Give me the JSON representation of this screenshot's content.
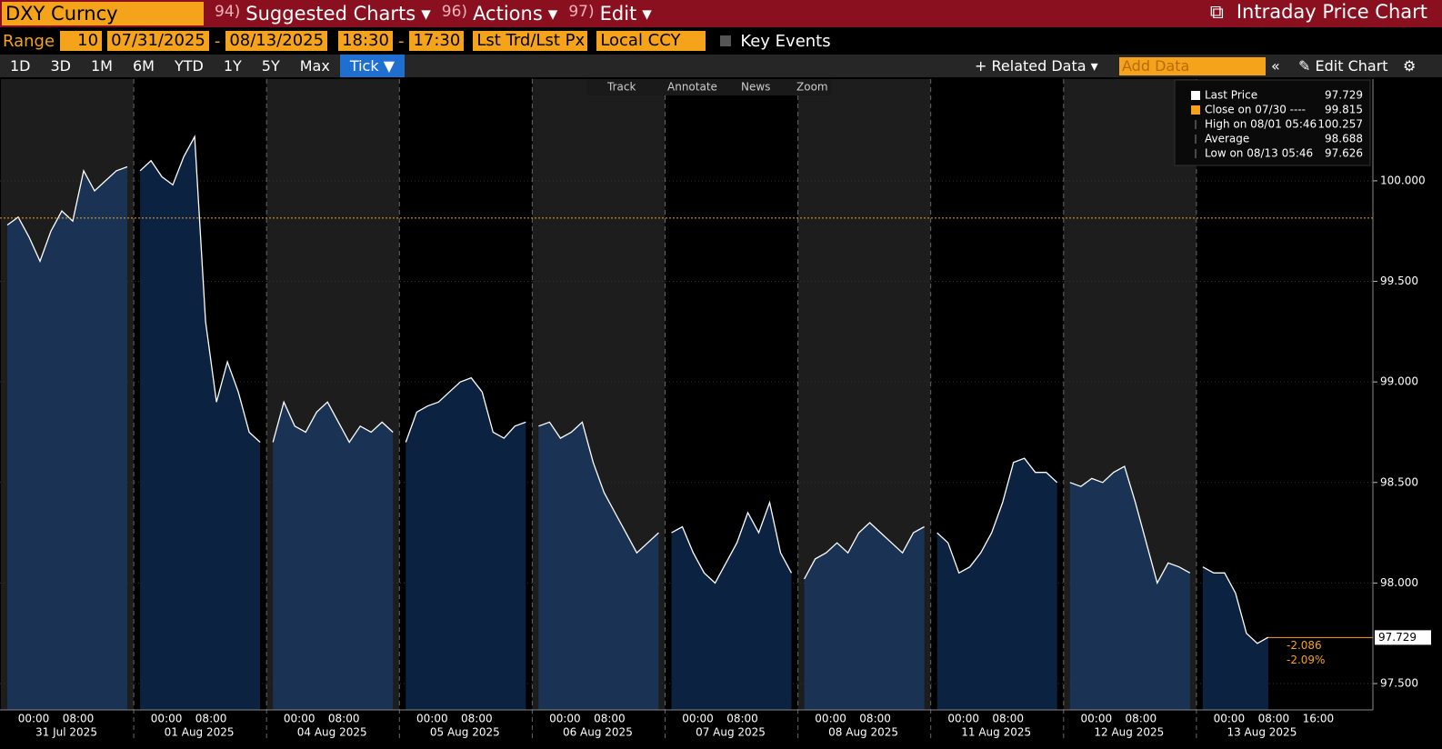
{
  "header": {
    "security": "DXY Curncy",
    "menus": [
      {
        "num": "94)",
        "label": "Suggested Charts"
      },
      {
        "num": "96)",
        "label": "Actions"
      },
      {
        "num": "97)",
        "label": "Edit"
      }
    ],
    "title": "Intraday Price Chart"
  },
  "toolbar": {
    "range_label": "Range",
    "range_value": "10",
    "start_date": "07/31/2025",
    "end_date": "08/13/2025",
    "start_time": "18:30",
    "end_time": "17:30",
    "field": "Lst Trd/Lst Px",
    "currency": "Local CCY",
    "key_events": "Key Events"
  },
  "periods": [
    "1D",
    "3D",
    "1M",
    "6M",
    "YTD",
    "1Y",
    "5Y",
    "Max"
  ],
  "tick_button": "Tick ▼",
  "right_tools": {
    "related": "Related Data",
    "add_data": "Add Data",
    "edit": "Edit Chart"
  },
  "chart_tools": [
    "Track",
    "Annotate",
    "News",
    "Zoom"
  ],
  "chart_data": {
    "type": "area",
    "ylim": [
      97.369,
      100.506
    ],
    "yticks": [
      {
        "value": 97.5,
        "label": "97.500"
      },
      {
        "value": 98,
        "label": "98.000"
      },
      {
        "value": 98.5,
        "label": "98.500"
      },
      {
        "value": 99,
        "label": "99.000"
      },
      {
        "value": 99.5,
        "label": "99.500"
      },
      {
        "value": 100,
        "label": "100.000"
      }
    ],
    "time_ticks": [
      "00:00",
      "08:00",
      "16:00"
    ],
    "days": [
      {
        "date": "31 Jul 2025",
        "values": [
          99.78,
          99.82,
          99.72,
          99.6,
          99.75,
          99.85,
          99.8,
          100.05,
          99.95,
          100.0,
          100.05,
          100.07
        ]
      },
      {
        "date": "01 Aug 2025",
        "values": [
          100.05,
          100.1,
          100.02,
          99.98,
          100.12,
          100.22,
          99.3,
          98.9,
          99.1,
          98.95,
          98.75,
          98.7
        ]
      },
      {
        "date": "04 Aug 2025",
        "values": [
          98.7,
          98.9,
          98.78,
          98.75,
          98.85,
          98.9,
          98.8,
          98.7,
          98.78,
          98.75,
          98.8,
          98.75
        ]
      },
      {
        "date": "05 Aug 2025",
        "values": [
          98.7,
          98.85,
          98.88,
          98.9,
          98.95,
          99.0,
          99.02,
          98.95,
          98.75,
          98.72,
          98.78,
          98.8
        ]
      },
      {
        "date": "06 Aug 2025",
        "values": [
          98.78,
          98.8,
          98.72,
          98.75,
          98.8,
          98.6,
          98.45,
          98.35,
          98.25,
          98.15,
          98.2,
          98.25
        ]
      },
      {
        "date": "07 Aug 2025",
        "values": [
          98.25,
          98.28,
          98.15,
          98.05,
          98.0,
          98.1,
          98.2,
          98.35,
          98.25,
          98.4,
          98.15,
          98.05
        ]
      },
      {
        "date": "08 Aug 2025",
        "values": [
          98.02,
          98.12,
          98.15,
          98.2,
          98.15,
          98.25,
          98.3,
          98.25,
          98.2,
          98.15,
          98.25,
          98.28
        ]
      },
      {
        "date": "11 Aug 2025",
        "values": [
          98.25,
          98.2,
          98.05,
          98.08,
          98.15,
          98.25,
          98.4,
          98.6,
          98.62,
          98.55,
          98.55,
          98.5
        ]
      },
      {
        "date": "12 Aug 2025",
        "values": [
          98.5,
          98.48,
          98.52,
          98.5,
          98.55,
          98.58,
          98.4,
          98.2,
          98.0,
          98.1,
          98.08,
          98.05
        ]
      },
      {
        "date": "13 Aug 2025",
        "values": [
          98.08,
          98.05,
          98.05,
          97.95,
          97.75,
          97.7,
          97.73
        ]
      }
    ],
    "legend": [
      {
        "label": "Last Price",
        "value": 97.729
      },
      {
        "label": "Close on 07/30 ----",
        "value": 99.815
      },
      {
        "label": "High on 08/01 05:46",
        "value": 100.257
      },
      {
        "label": "Average",
        "value": 98.688
      },
      {
        "label": "Low on 08/13 05:46",
        "value": 97.626
      }
    ],
    "last_price": 97.729,
    "change": -2.086,
    "change_pct": "-2.09%",
    "colors": {
      "line": "#ffffff",
      "area_a": "#1a3354",
      "area_b": "#0b2240",
      "close_line": "#f5a31a",
      "last_line": "#f5a31a"
    }
  }
}
